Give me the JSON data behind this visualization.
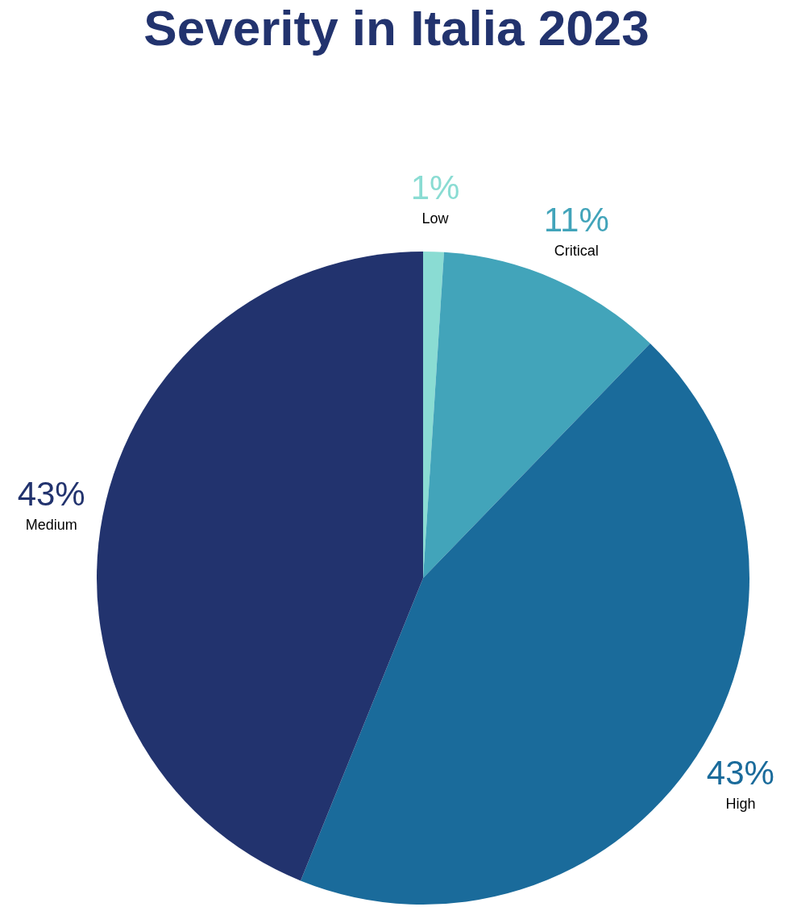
{
  "chart_data": {
    "type": "pie",
    "title": "Severity in Italia 2023",
    "categories": [
      "Low",
      "Critical",
      "High",
      "Medium"
    ],
    "values": [
      1,
      11,
      43,
      43
    ],
    "value_labels": [
      "1%",
      "11%",
      "43%",
      "43%"
    ],
    "colors": [
      "#8adcd3",
      "#42a4ba",
      "#1a6b9b",
      "#22336e"
    ],
    "legend": false
  }
}
